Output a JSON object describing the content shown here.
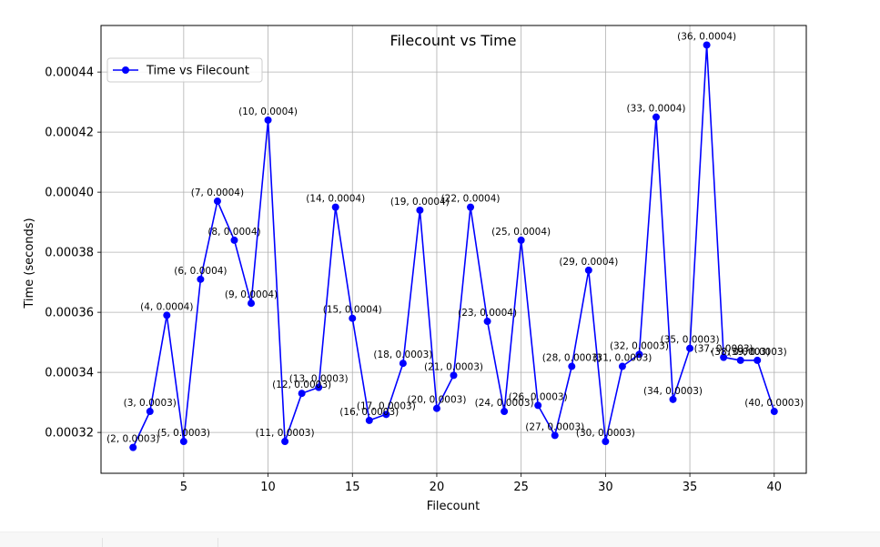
{
  "chart_data": {
    "type": "line",
    "title": "Filecount vs Time",
    "xlabel": "Filecount",
    "ylabel": "Time (seconds)",
    "xlim": [
      0.1,
      41.9
    ],
    "ylim": [
      0.0003064,
      0.0004555
    ],
    "x_ticks": [
      5,
      10,
      15,
      20,
      25,
      30,
      35,
      40
    ],
    "y_ticks": [
      0.00032,
      0.00034,
      0.00036,
      0.00038,
      0.0004,
      0.00042,
      0.00044
    ],
    "x_tick_labels": [
      "5",
      "10",
      "15",
      "20",
      "25",
      "30",
      "35",
      "40"
    ],
    "y_tick_labels": [
      "0.00032",
      "0.00034",
      "0.00036",
      "0.00038",
      "0.00040",
      "0.00042",
      "0.00044"
    ],
    "grid": true,
    "legend_position": "top-left",
    "color": "#0000ff",
    "series": [
      {
        "name": "Time vs Filecount",
        "x": [
          2,
          3,
          4,
          5,
          6,
          7,
          8,
          9,
          10,
          11,
          12,
          13,
          14,
          15,
          16,
          17,
          18,
          19,
          20,
          21,
          22,
          23,
          24,
          25,
          26,
          27,
          28,
          29,
          30,
          31,
          32,
          33,
          34,
          35,
          36,
          37,
          38,
          39,
          40
        ],
        "y": [
          0.000315,
          0.000327,
          0.000359,
          0.000317,
          0.000371,
          0.000397,
          0.000384,
          0.000363,
          0.000424,
          0.000317,
          0.000333,
          0.000335,
          0.000395,
          0.000358,
          0.000324,
          0.000326,
          0.000343,
          0.000394,
          0.000328,
          0.000339,
          0.000395,
          0.000357,
          0.000327,
          0.000384,
          0.000329,
          0.000319,
          0.000342,
          0.000374,
          0.000317,
          0.000342,
          0.000346,
          0.000425,
          0.000331,
          0.000348,
          0.000449,
          0.000345,
          0.000344,
          0.000344,
          0.000327
        ],
        "labels": [
          "(2, 0.0003)",
          "(3, 0.0003)",
          "(4, 0.0004)",
          "(5, 0.0003)",
          "(6, 0.0004)",
          "(7, 0.0004)",
          "(8, 0.0004)",
          "(9, 0.0004)",
          "(10, 0.0004)",
          "(11, 0.0003)",
          "(12, 0.0003)",
          "(13, 0.0003)",
          "(14, 0.0004)",
          "(15, 0.0004)",
          "(16, 0.0003)",
          "(17, 0.0003)",
          "(18, 0.0003)",
          "(19, 0.0004)",
          "(20, 0.0003)",
          "(21, 0.0003)",
          "(22, 0.0004)",
          "(23, 0.0004)",
          "(24, 0.0003)",
          "(25, 0.0004)",
          "(26, 0.0003)",
          "(27, 0.0003)",
          "(28, 0.0003)",
          "(29, 0.0004)",
          "(30, 0.0003)",
          "(31, 0.0003)",
          "(32, 0.0003)",
          "(33, 0.0004)",
          "(34, 0.0003)",
          "(35, 0.0003)",
          "(36, 0.0004)",
          "(37, 0.0003)",
          "(38, 0.0003)",
          "(39, 0.0003)",
          "(40, 0.0003)"
        ]
      }
    ]
  }
}
